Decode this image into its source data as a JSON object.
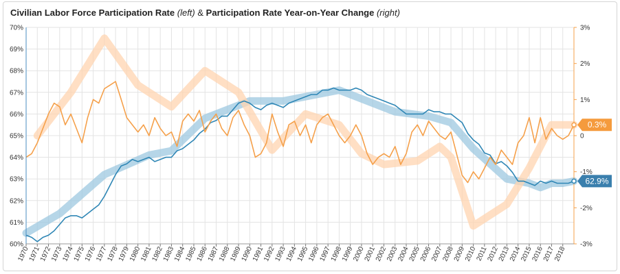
{
  "title": {
    "left_series": "Civilian Labor Force Participation Rate",
    "left_note": "(left)",
    "joiner": "&",
    "right_series": "Participation Rate Year-on-Year Change",
    "right_note": "(right)"
  },
  "chart_data": {
    "type": "line",
    "title": "Civilian Labor Force Participation Rate (left) & Participation Rate Year-on-Year Change (right)",
    "x_range": [
      1970.0,
      2019.0
    ],
    "x_tick_labels": [
      "1970",
      "1971",
      "1972",
      "1973",
      "1974",
      "1975",
      "1976",
      "1977",
      "1978",
      "1979",
      "1980",
      "1981",
      "1982",
      "1983",
      "1984",
      "1985",
      "1986",
      "1987",
      "1988",
      "1989",
      "1990",
      "1991",
      "1992",
      "1993",
      "1994",
      "1995",
      "1996",
      "1997",
      "1998",
      "1999",
      "2000",
      "2001",
      "2002",
      "2003",
      "2004",
      "2005",
      "2006",
      "2007",
      "2008",
      "2009",
      "2010",
      "2011",
      "2012",
      "2013",
      "2014",
      "2015",
      "2016",
      "2017",
      "2018"
    ],
    "left_axis": {
      "ylim": [
        60,
        70
      ],
      "tick_labels": [
        "60%",
        "61%",
        "62%",
        "63%",
        "64%",
        "65%",
        "66%",
        "67%",
        "68%",
        "69%",
        "70%"
      ],
      "color": "#4a8ec2"
    },
    "right_axis": {
      "ylim": [
        -3,
        3
      ],
      "tick_labels": [
        "-3%",
        "-2%",
        "-1%",
        "0",
        "1%",
        "2%",
        "3%"
      ],
      "color": "#f5a04a"
    },
    "grid": true,
    "series": [
      {
        "axis": "left",
        "kind": "monthly",
        "color": "#2e86b5",
        "x": [
          1970.0,
          1970.5,
          1971.0,
          1971.5,
          1972.0,
          1972.5,
          1973.0,
          1973.5,
          1974.0,
          1974.5,
          1975.0,
          1975.5,
          1976.0,
          1976.5,
          1977.0,
          1977.5,
          1978.0,
          1978.5,
          1979.0,
          1979.5,
          1980.0,
          1980.5,
          1981.0,
          1981.5,
          1982.0,
          1982.5,
          1983.0,
          1983.5,
          1984.0,
          1984.5,
          1985.0,
          1985.5,
          1986.0,
          1986.5,
          1987.0,
          1987.5,
          1988.0,
          1988.5,
          1989.0,
          1989.5,
          1990.0,
          1990.5,
          1991.0,
          1991.5,
          1992.0,
          1992.5,
          1993.0,
          1993.5,
          1994.0,
          1994.5,
          1995.0,
          1995.5,
          1996.0,
          1996.5,
          1997.0,
          1997.5,
          1998.0,
          1998.5,
          1999.0,
          1999.5,
          2000.0,
          2000.5,
          2001.0,
          2001.5,
          2002.0,
          2002.5,
          2003.0,
          2003.5,
          2004.0,
          2004.5,
          2005.0,
          2005.5,
          2006.0,
          2006.5,
          2007.0,
          2007.5,
          2008.0,
          2008.5,
          2009.0,
          2009.5,
          2010.0,
          2010.5,
          2011.0,
          2011.5,
          2012.0,
          2012.5,
          2013.0,
          2013.5,
          2014.0,
          2014.5,
          2015.0,
          2015.5,
          2016.0,
          2016.5,
          2017.0,
          2017.5,
          2018.0,
          2018.5,
          2019.0
        ],
        "values": [
          60.4,
          60.3,
          60.1,
          60.3,
          60.4,
          60.6,
          60.9,
          61.2,
          61.3,
          61.3,
          61.2,
          61.4,
          61.6,
          61.8,
          62.2,
          62.7,
          63.2,
          63.6,
          63.7,
          63.9,
          63.8,
          63.9,
          64.0,
          63.8,
          63.9,
          64.0,
          64.0,
          64.3,
          64.4,
          64.6,
          64.8,
          65.1,
          65.3,
          65.6,
          65.7,
          65.9,
          65.9,
          66.2,
          66.5,
          66.6,
          66.5,
          66.3,
          66.2,
          66.4,
          66.5,
          66.4,
          66.3,
          66.5,
          66.6,
          66.7,
          66.8,
          66.9,
          66.9,
          67.1,
          67.1,
          67.2,
          67.1,
          67.1,
          67.1,
          67.2,
          67.1,
          66.9,
          66.8,
          66.7,
          66.6,
          66.5,
          66.4,
          66.2,
          66.0,
          66.0,
          66.0,
          66.0,
          66.2,
          66.1,
          66.1,
          66.0,
          66.0,
          65.8,
          65.6,
          65.1,
          64.8,
          64.6,
          64.2,
          64.1,
          63.7,
          63.8,
          63.6,
          63.3,
          62.9,
          62.9,
          62.8,
          62.7,
          62.9,
          62.8,
          62.9,
          62.8,
          62.8,
          62.8,
          62.9
        ]
      },
      {
        "axis": "right",
        "kind": "monthly",
        "color": "#f5a04a",
        "x": [
          1970.0,
          1970.5,
          1971.0,
          1971.5,
          1972.0,
          1972.5,
          1973.0,
          1973.5,
          1974.0,
          1974.5,
          1975.0,
          1975.5,
          1976.0,
          1976.5,
          1977.0,
          1977.5,
          1978.0,
          1978.5,
          1979.0,
          1979.5,
          1980.0,
          1980.5,
          1981.0,
          1981.5,
          1982.0,
          1982.5,
          1983.0,
          1983.5,
          1984.0,
          1984.5,
          1985.0,
          1985.5,
          1986.0,
          1986.5,
          1987.0,
          1987.5,
          1988.0,
          1988.5,
          1989.0,
          1989.5,
          1990.0,
          1990.5,
          1991.0,
          1991.5,
          1992.0,
          1992.5,
          1993.0,
          1993.5,
          1994.0,
          1994.5,
          1995.0,
          1995.5,
          1996.0,
          1996.5,
          1997.0,
          1997.5,
          1998.0,
          1998.5,
          1999.0,
          1999.5,
          2000.0,
          2000.5,
          2001.0,
          2001.5,
          2002.0,
          2002.5,
          2003.0,
          2003.5,
          2004.0,
          2004.5,
          2005.0,
          2005.5,
          2006.0,
          2006.5,
          2007.0,
          2007.5,
          2008.0,
          2008.5,
          2009.0,
          2009.5,
          2010.0,
          2010.5,
          2011.0,
          2011.5,
          2012.0,
          2012.5,
          2013.0,
          2013.5,
          2014.0,
          2014.5,
          2015.0,
          2015.5,
          2016.0,
          2016.5,
          2017.0,
          2017.5,
          2018.0,
          2018.5,
          2019.0
        ],
        "values": [
          -0.6,
          -0.5,
          -0.2,
          0.2,
          0.6,
          0.9,
          0.8,
          0.3,
          0.6,
          0.2,
          -0.2,
          0.5,
          1.0,
          0.9,
          1.3,
          1.4,
          1.5,
          1.0,
          0.5,
          0.3,
          0.1,
          0.3,
          0.0,
          0.5,
          0.2,
          0.0,
          0.1,
          -0.3,
          0.4,
          0.6,
          0.4,
          0.7,
          0.1,
          0.4,
          0.6,
          0.2,
          0.0,
          0.5,
          0.7,
          0.3,
          0.0,
          -0.6,
          -0.5,
          -0.2,
          0.6,
          0.1,
          -0.3,
          0.3,
          0.4,
          0.0,
          0.3,
          -0.2,
          0.3,
          0.5,
          0.6,
          0.3,
          0.0,
          -0.2,
          0.0,
          0.3,
          0.0,
          -0.5,
          -0.8,
          -0.6,
          -0.5,
          -0.6,
          -0.3,
          -0.8,
          -0.5,
          0.1,
          0.3,
          0.0,
          0.4,
          0.2,
          0.0,
          -0.1,
          0.1,
          -0.5,
          -1.1,
          -1.3,
          -1.0,
          -1.2,
          -0.9,
          -0.6,
          -0.8,
          -0.4,
          -0.6,
          -0.8,
          -0.2,
          0.0,
          0.5,
          -0.2,
          0.5,
          -0.1,
          0.2,
          0.0,
          -0.1,
          0.0,
          0.3
        ]
      },
      {
        "axis": "left",
        "kind": "annual-trend",
        "color": "#9ec8e0",
        "x": [
          1970,
          1973,
          1977,
          1981,
          1983,
          1986,
          1990,
          1993,
          1998,
          2003,
          2006,
          2008,
          2010,
          2013,
          2015,
          2016,
          2017,
          2018,
          2019
        ],
        "values": [
          60.5,
          61.4,
          63.2,
          64.1,
          64.3,
          65.8,
          66.6,
          66.6,
          67.1,
          66.1,
          65.9,
          65.6,
          64.4,
          63.0,
          62.8,
          62.6,
          62.8,
          62.8,
          62.9
        ]
      },
      {
        "axis": "right",
        "kind": "annual-trend",
        "color": "#ffd4b0",
        "x": [
          1971,
          1974,
          1977,
          1980,
          1983,
          1986,
          1989,
          1992,
          1995,
          1998,
          2000,
          2002,
          2005,
          2007,
          2008,
          2010,
          2013,
          2015,
          2017,
          2019
        ],
        "values": [
          0.0,
          1.2,
          2.7,
          1.4,
          0.8,
          1.8,
          1.2,
          -0.4,
          0.6,
          0.3,
          -0.5,
          -0.8,
          -0.7,
          -0.3,
          -0.6,
          -2.5,
          -1.9,
          -0.9,
          0.3,
          0.3
        ]
      }
    ],
    "end_labels": {
      "right_value": "0.3%",
      "left_value": "62.9%"
    }
  }
}
